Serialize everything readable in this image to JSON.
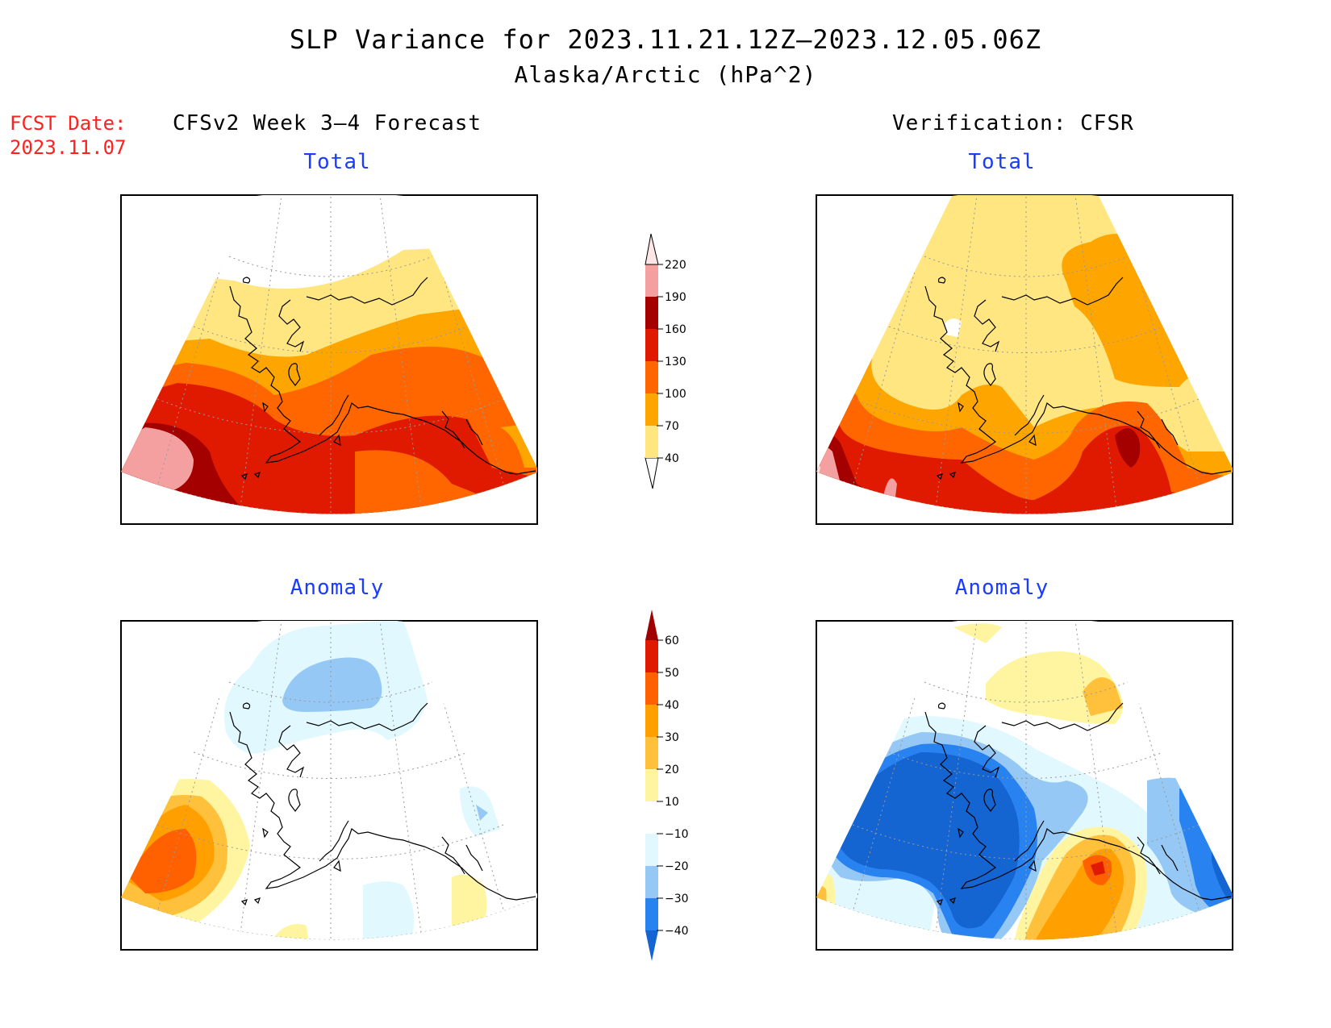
{
  "title": "SLP Variance for 2023.11.21.12Z–2023.12.05.06Z",
  "subtitle": "Alaska/Arctic (hPa^2)",
  "fcst_date_label": "FCST Date:",
  "fcst_date": "2023.11.07",
  "left_column_title": "CFSv2 Week 3–4 Forecast",
  "right_column_title": "Verification: CFSR",
  "panels": {
    "forecast_total": "Total",
    "verification_total": "Total",
    "forecast_anomaly": "Anomaly",
    "verification_anomaly": "Anomaly"
  },
  "total_colorbar": {
    "levels": [
      40,
      70,
      100,
      130,
      160,
      190,
      220
    ],
    "colors": [
      "#ffe680",
      "#ffa500",
      "#ff6600",
      "#e01a00",
      "#a50000",
      "#f4a0a0",
      "#ffe6e6"
    ]
  },
  "anomaly_colorbar": {
    "levels": [
      -40,
      -30,
      -20,
      -10,
      10,
      20,
      30,
      40,
      50,
      60
    ],
    "colors": [
      "#1464d2",
      "#2882f0",
      "#96c8f5",
      "#e1f8ff",
      "#ffffff",
      "#fff5a0",
      "#ffc03c",
      "#ffa000",
      "#ff6000",
      "#e01a00",
      "#a00000"
    ]
  }
}
